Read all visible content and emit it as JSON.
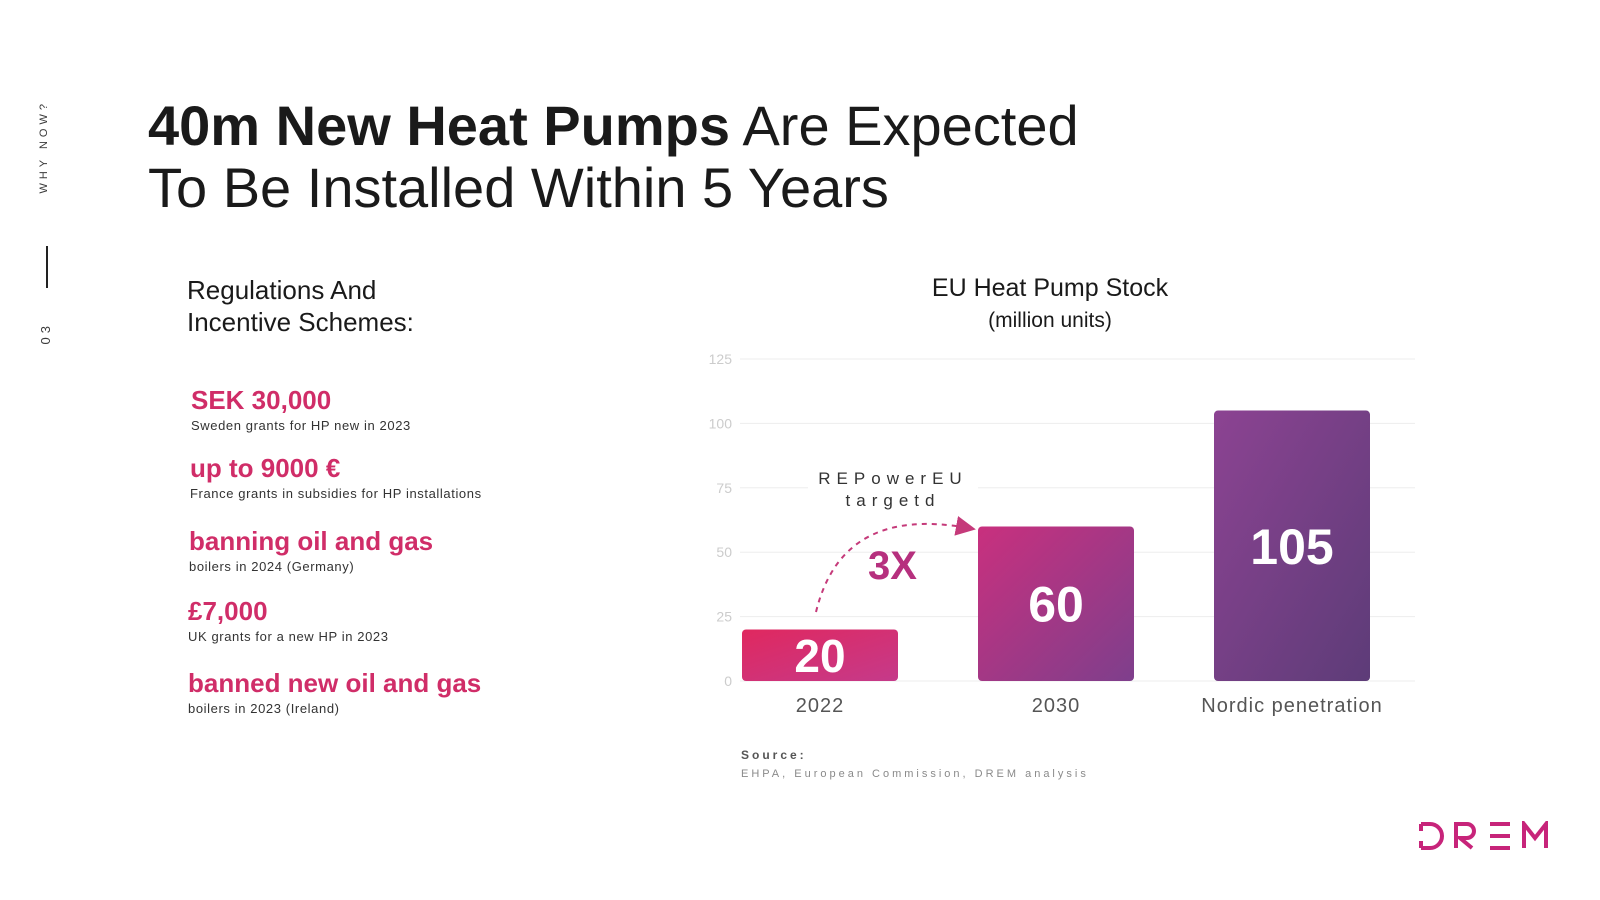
{
  "sidebar": {
    "section_label": "WHY NOW?",
    "page_number": "03"
  },
  "title": {
    "bold": "40m New Heat Pumps",
    "line1_rest": " Are Expected",
    "line2": "To Be Installed Within 5 Years"
  },
  "regulations": {
    "heading_line1": "Regulations And",
    "heading_line2": "Incentive Schemes:",
    "items": [
      {
        "value": "SEK 30,000",
        "desc": "Sweden grants  for HP new in 2023"
      },
      {
        "value": "up to 9000 €",
        "desc": "France grants in subsidies for HP installations"
      },
      {
        "value": "banning oil and gas",
        "desc": "boilers in 2024 (Germany)"
      },
      {
        "value": "£7,000",
        "desc": "UK grants  for a new HP in 2023"
      },
      {
        "value": "banned new oil and gas",
        "desc": "boilers in 2023 (Ireland)"
      }
    ]
  },
  "chart_data": {
    "type": "bar",
    "title": "EU Heat Pump Stock",
    "subtitle": "(million units)",
    "categories": [
      "2022",
      "2030",
      "Nordic penetration"
    ],
    "values": [
      20,
      60,
      105
    ],
    "ylim": [
      0,
      125
    ],
    "yticks": [
      0,
      25,
      50,
      75,
      100,
      125
    ],
    "grid": true,
    "bar_colors": [
      [
        "#e0285f",
        "#c53a8a"
      ],
      [
        "#c9307e",
        "#7e3f8c"
      ],
      [
        "#8c4392",
        "#5d3c78"
      ]
    ],
    "annotation": {
      "line1": "REPowerEU",
      "line2": "targetd",
      "multiplier": "3X"
    }
  },
  "source": {
    "label": "Source:",
    "text": "EHPA, European Commission, DREM analysis"
  },
  "logo": {
    "text": "DREM",
    "color": "#c7247a"
  }
}
